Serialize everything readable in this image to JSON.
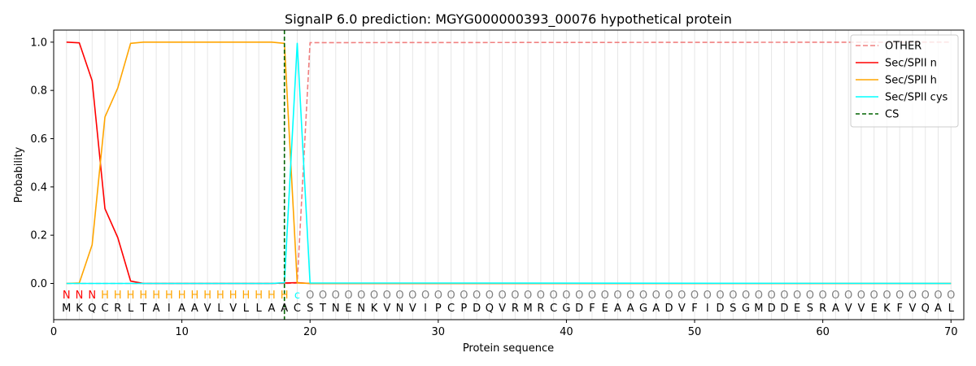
{
  "chart_data": {
    "type": "line",
    "title": "SignalP 6.0 prediction: MGYG000000393_00076 hypothetical protein",
    "xlabel": "Protein sequence",
    "ylabel": "Probability",
    "xlim": [
      0,
      71
    ],
    "ylim": [
      -0.15,
      1.05
    ],
    "xticks": [
      0,
      10,
      20,
      30,
      40,
      50,
      60,
      70
    ],
    "yticks": [
      "0.0",
      "0.2",
      "0.4",
      "0.6",
      "0.8",
      "1.0"
    ],
    "legend_position": "top-right",
    "sequence": [
      "M",
      "K",
      "Q",
      "C",
      "R",
      "L",
      "T",
      "A",
      "I",
      "A",
      "A",
      "V",
      "L",
      "V",
      "L",
      "L",
      "A",
      "A",
      "C",
      "S",
      "T",
      "N",
      "E",
      "N",
      "K",
      "V",
      "N",
      "V",
      "I",
      "P",
      "C",
      "P",
      "D",
      "Q",
      "V",
      "R",
      "M",
      "R",
      "C",
      "G",
      "D",
      "F",
      "E",
      "A",
      "A",
      "G",
      "A",
      "D",
      "V",
      "F",
      "I",
      "D",
      "S",
      "G",
      "M",
      "D",
      "D",
      "E",
      "S",
      "R",
      "A",
      "V",
      "V",
      "E",
      "K",
      "F",
      "V",
      "Q",
      "A",
      "L"
    ],
    "region_labels": [
      "N",
      "N",
      "N",
      "H",
      "H",
      "H",
      "H",
      "H",
      "H",
      "H",
      "H",
      "H",
      "H",
      "H",
      "H",
      "H",
      "H",
      "H",
      "c",
      "O",
      "O",
      "O",
      "O",
      "O",
      "O",
      "O",
      "O",
      "O",
      "O",
      "O",
      "O",
      "O",
      "O",
      "O",
      "O",
      "O",
      "O",
      "O",
      "O",
      "O",
      "O",
      "O",
      "O",
      "O",
      "O",
      "O",
      "O",
      "O",
      "O",
      "O",
      "O",
      "O",
      "O",
      "O",
      "O",
      "O",
      "O",
      "O",
      "O",
      "O",
      "O",
      "O",
      "O",
      "O",
      "O",
      "O",
      "O",
      "O",
      "O",
      "O"
    ],
    "region_colors": {
      "N": "#ff0000",
      "H": "#ffa500",
      "c": "#00ffff",
      "O": "#808080"
    },
    "cleavage_site": 18,
    "series": [
      {
        "name": "OTHER",
        "color": "#f08080",
        "dashed": true,
        "x": [
          1,
          2,
          3,
          4,
          5,
          6,
          7,
          8,
          9,
          10,
          11,
          12,
          13,
          14,
          15,
          16,
          17,
          18,
          19,
          20,
          70
        ],
        "values": [
          0,
          0,
          0,
          0,
          0,
          0,
          0,
          0,
          0,
          0,
          0,
          0,
          0,
          0,
          0,
          0,
          0,
          0,
          0.002,
          0.998,
          1.0
        ]
      },
      {
        "name": "Sec/SPII n",
        "color": "#ff0000",
        "dashed": false,
        "x": [
          1,
          2,
          3,
          4,
          5,
          6,
          7,
          8,
          17,
          18,
          19,
          20,
          70
        ],
        "values": [
          1.0,
          0.997,
          0.84,
          0.31,
          0.19,
          0.01,
          0.0,
          0.0,
          0.0,
          0.002,
          0.003,
          0.0,
          0.0
        ]
      },
      {
        "name": "Sec/SPII h",
        "color": "#ffa500",
        "dashed": false,
        "x": [
          1,
          2,
          3,
          4,
          5,
          6,
          7,
          8,
          17,
          18,
          19,
          20,
          70
        ],
        "values": [
          0.0,
          0.002,
          0.16,
          0.69,
          0.81,
          0.995,
          1.0,
          1.0,
          1.0,
          0.995,
          0.002,
          0.0,
          0.0
        ]
      },
      {
        "name": "Sec/SPII cys",
        "color": "#00ffff",
        "dashed": false,
        "x": [
          1,
          17,
          18,
          19,
          20,
          70
        ],
        "values": [
          0.0,
          0.0,
          0.003,
          0.995,
          0.002,
          0.0
        ]
      }
    ],
    "cs_legend": {
      "name": "CS",
      "color": "#006400"
    }
  }
}
